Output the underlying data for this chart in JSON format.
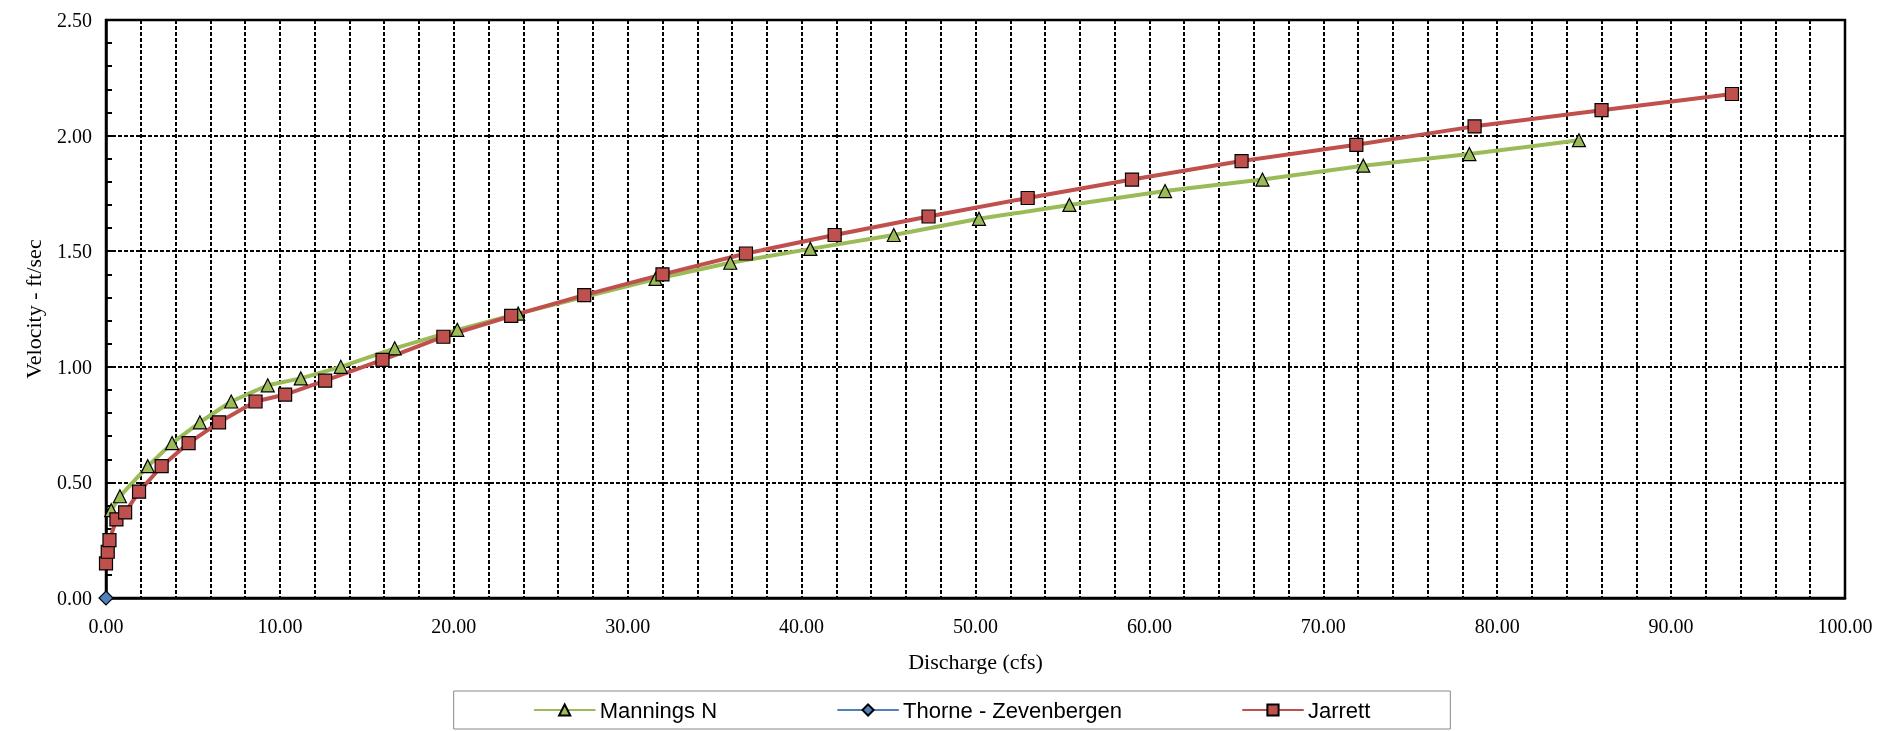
{
  "chart_data": {
    "type": "line",
    "xlabel": "Discharge (cfs)",
    "ylabel": "Velocity - ft/sec",
    "xlim": [
      0,
      100
    ],
    "xticks": [
      {
        "value": 0,
        "label": "0.00"
      },
      {
        "value": 2,
        "label": null
      },
      {
        "value": 4,
        "label": null
      },
      {
        "value": 6,
        "label": null
      },
      {
        "value": 8,
        "label": null
      },
      {
        "value": 10,
        "label": "10.00"
      },
      {
        "value": 12,
        "label": null
      },
      {
        "value": 14,
        "label": null
      },
      {
        "value": 16,
        "label": null
      },
      {
        "value": 18,
        "label": null
      },
      {
        "value": 20,
        "label": "20.00"
      },
      {
        "value": 22,
        "label": null
      },
      {
        "value": 24,
        "label": null
      },
      {
        "value": 26,
        "label": null
      },
      {
        "value": 28,
        "label": null
      },
      {
        "value": 30,
        "label": "30.00"
      },
      {
        "value": 32,
        "label": null
      },
      {
        "value": 34,
        "label": null
      },
      {
        "value": 36,
        "label": null
      },
      {
        "value": 38,
        "label": null
      },
      {
        "value": 40,
        "label": "40.00"
      },
      {
        "value": 42,
        "label": null
      },
      {
        "value": 44,
        "label": null
      },
      {
        "value": 46,
        "label": null
      },
      {
        "value": 48,
        "label": null
      },
      {
        "value": 50,
        "label": "50.00"
      },
      {
        "value": 52,
        "label": null
      },
      {
        "value": 54,
        "label": null
      },
      {
        "value": 56,
        "label": null
      },
      {
        "value": 58,
        "label": null
      },
      {
        "value": 60,
        "label": "60.00"
      },
      {
        "value": 62,
        "label": null
      },
      {
        "value": 64,
        "label": null
      },
      {
        "value": 66,
        "label": null
      },
      {
        "value": 68,
        "label": null
      },
      {
        "value": 70,
        "label": "70.00"
      },
      {
        "value": 72,
        "label": null
      },
      {
        "value": 74,
        "label": null
      },
      {
        "value": 76,
        "label": null
      },
      {
        "value": 78,
        "label": null
      },
      {
        "value": 80,
        "label": "80.00"
      },
      {
        "value": 82,
        "label": null
      },
      {
        "value": 84,
        "label": null
      },
      {
        "value": 86,
        "label": null
      },
      {
        "value": 88,
        "label": null
      },
      {
        "value": 90,
        "label": "90.00"
      },
      {
        "value": 92,
        "label": null
      },
      {
        "value": 94,
        "label": null
      },
      {
        "value": 96,
        "label": null
      },
      {
        "value": 98,
        "label": null
      },
      {
        "value": 100,
        "label": "100.00"
      }
    ],
    "ylim": [
      0,
      2.5
    ],
    "yticks": [
      {
        "value": 0,
        "label": "0.00"
      },
      {
        "value": 0.5,
        "label": "0.50"
      },
      {
        "value": 1,
        "label": "1.00"
      },
      {
        "value": 1.5,
        "label": "1.50"
      },
      {
        "value": 2,
        "label": "2.00"
      },
      {
        "value": 2.5,
        "label": "2.50"
      }
    ],
    "grid": true,
    "legend": "bottom",
    "line_style": "solid",
    "series": [
      {
        "name": "Mannings N",
        "color": "#9bbb59",
        "marker": "triangle",
        "x": [
          0.3,
          0.8,
          2.4,
          3.8,
          5.4,
          7.2,
          9.3,
          11.2,
          13.5,
          16.6,
          20.2,
          23.7,
          31.6,
          35.9,
          40.5,
          45.3,
          50.2,
          55.4,
          60.9,
          66.5,
          72.3,
          78.4,
          84.7
        ],
        "values": [
          0.38,
          0.44,
          0.57,
          0.67,
          0.76,
          0.85,
          0.92,
          0.95,
          1.0,
          1.08,
          1.16,
          1.23,
          1.38,
          1.45,
          1.51,
          1.57,
          1.64,
          1.7,
          1.76,
          1.81,
          1.87,
          1.92,
          1.98
        ]
      },
      {
        "name": "Thorne - Zevenbergen",
        "color": "#4f81bd",
        "marker": "diamond",
        "x": [
          0
        ],
        "values": [
          0
        ]
      },
      {
        "name": "Jarrett",
        "color": "#c0504d",
        "marker": "square",
        "x": [
          0,
          0.1,
          0.2,
          0.6,
          1.1,
          1.9,
          3.2,
          4.75,
          6.5,
          8.6,
          10.3,
          12.6,
          15.9,
          19.4,
          23.3,
          27.5,
          32.0,
          36.8,
          41.9,
          47.3,
          53.0,
          59.0,
          65.3,
          71.9,
          78.7,
          86.0,
          93.5
        ],
        "values": [
          0.15,
          0.2,
          0.25,
          0.34,
          0.37,
          0.46,
          0.57,
          0.67,
          0.76,
          0.85,
          0.88,
          0.94,
          1.03,
          1.13,
          1.22,
          1.31,
          1.4,
          1.49,
          1.57,
          1.65,
          1.73,
          1.81,
          1.89,
          1.96,
          2.04,
          2.11,
          2.18
        ]
      }
    ]
  }
}
